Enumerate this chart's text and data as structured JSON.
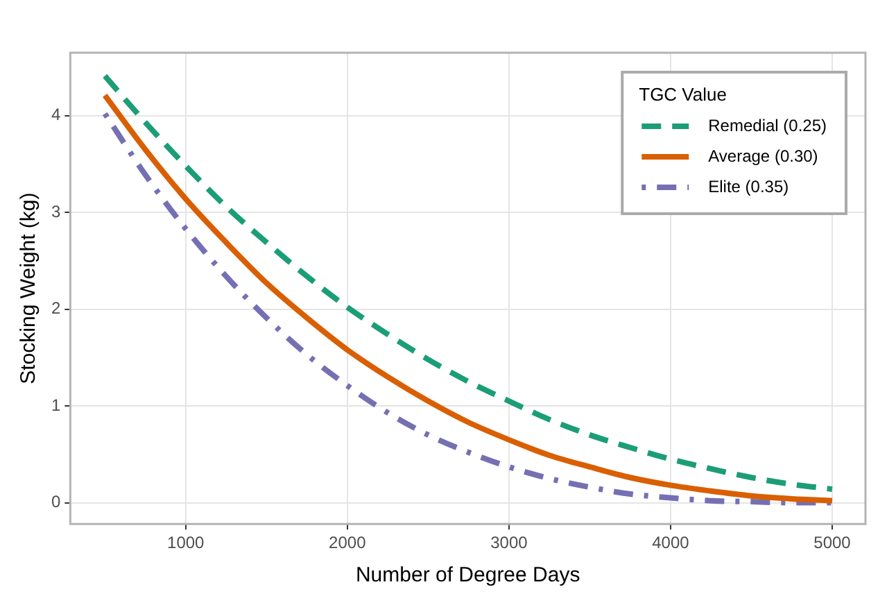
{
  "chart_data": {
    "type": "line",
    "xlabel": "Number of Degree Days",
    "ylabel": "Stocking Weight (kg)",
    "legend_title": "TGC Value",
    "legend": "top right",
    "grid": true,
    "marker": "none",
    "x": [
      500,
      750,
      1000,
      1250,
      1500,
      1750,
      2000,
      2250,
      2500,
      2750,
      3000,
      3250,
      3500,
      3750,
      4000,
      4250,
      4500,
      4750,
      5000
    ],
    "xlim": [
      286,
      5206
    ],
    "xticks": [
      1000,
      2000,
      3000,
      4000,
      5000
    ],
    "ylim": [
      -0.22,
      4.65
    ],
    "yticks": [
      0,
      1,
      2,
      3,
      4
    ],
    "series": [
      {
        "name": "Remedial (0.25)",
        "color": "#1b9e77",
        "line_style": "dashed",
        "values": [
          4.41,
          3.93,
          3.48,
          3.06,
          2.69,
          2.34,
          2.02,
          1.74,
          1.48,
          1.25,
          1.05,
          0.86,
          0.7,
          0.57,
          0.45,
          0.35,
          0.26,
          0.19,
          0.14
        ]
      },
      {
        "name": "Average (0.30)",
        "color": "#d95f02",
        "line_style": "solid",
        "values": [
          4.21,
          3.65,
          3.14,
          2.69,
          2.27,
          1.91,
          1.58,
          1.3,
          1.05,
          0.83,
          0.65,
          0.49,
          0.37,
          0.26,
          0.18,
          0.12,
          0.07,
          0.04,
          0.02
        ]
      },
      {
        "name": "Elite (0.35)",
        "color": "#7570b3",
        "line_style": "dashdot",
        "values": [
          4.02,
          3.39,
          2.83,
          2.34,
          1.91,
          1.53,
          1.21,
          0.93,
          0.7,
          0.52,
          0.37,
          0.25,
          0.16,
          0.09,
          0.05,
          0.02,
          0.01,
          0,
          0
        ]
      }
    ]
  }
}
